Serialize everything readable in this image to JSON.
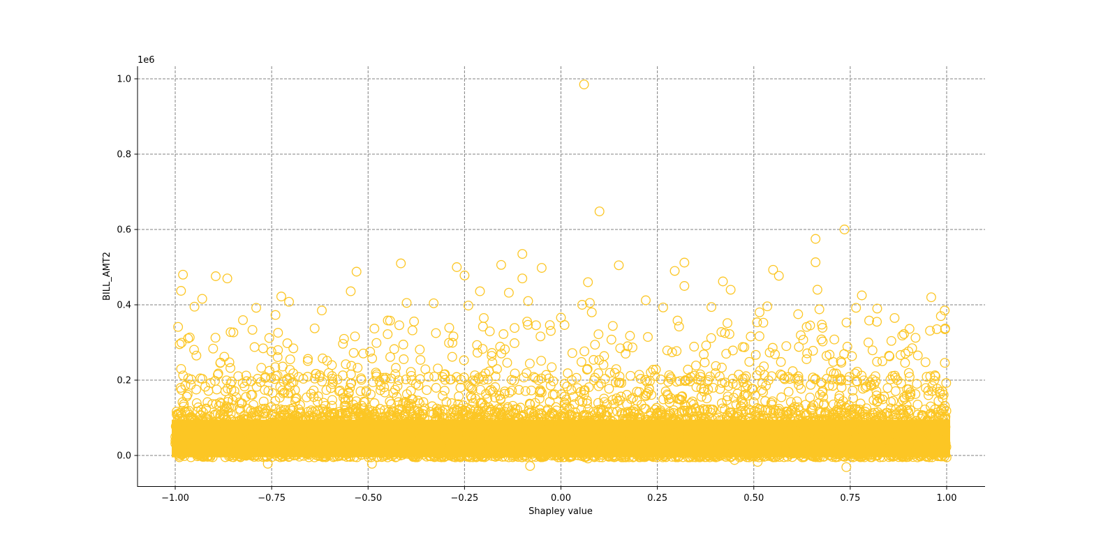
{
  "chart_data": {
    "type": "scatter",
    "title": "",
    "xlabel": "Shapley value",
    "ylabel": "BILL_AMT2",
    "y_offset_label": "1e6",
    "xlim": [
      -1.1,
      1.1
    ],
    "ylim": [
      -0.083,
      1.03
    ],
    "y_scale": 1000000,
    "x_ticks": [
      -1.0,
      -0.75,
      -0.5,
      -0.25,
      0.0,
      0.25,
      0.5,
      0.75,
      1.0
    ],
    "x_tick_labels": [
      "−1.00",
      "−0.75",
      "−0.50",
      "−0.25",
      "0.00",
      "0.25",
      "0.50",
      "0.75",
      "1.00"
    ],
    "y_ticks": [
      0.0,
      0.2,
      0.4,
      0.6,
      0.8,
      1.0
    ],
    "y_tick_labels": [
      "0.0",
      "0.2",
      "0.4",
      "0.6",
      "0.8",
      "1.0"
    ],
    "grid": true,
    "grid_style": "dashed",
    "marker": "open-circle",
    "marker_color": "#FCC624",
    "legend": null,
    "distribution": {
      "x_range": [
        -1.0,
        1.0
      ],
      "dense_band_y_range": [
        0.0,
        0.1
      ],
      "medium_band_y_range": [
        0.1,
        0.2
      ],
      "sparse_y_max": 0.6
    },
    "outliers": [
      {
        "x": 0.06,
        "y": 0.985
      },
      {
        "x": 0.1,
        "y": 0.648
      },
      {
        "x": 0.735,
        "y": 0.6
      },
      {
        "x": 0.66,
        "y": 0.575
      },
      {
        "x": -0.1,
        "y": 0.535
      },
      {
        "x": 0.66,
        "y": 0.513
      },
      {
        "x": 0.32,
        "y": 0.512
      },
      {
        "x": -0.415,
        "y": 0.51
      },
      {
        "x": -0.155,
        "y": 0.506
      },
      {
        "x": 0.15,
        "y": 0.505
      },
      {
        "x": -0.27,
        "y": 0.5
      },
      {
        "x": -0.05,
        "y": 0.498
      },
      {
        "x": 0.55,
        "y": 0.493
      },
      {
        "x": 0.295,
        "y": 0.49
      },
      {
        "x": -0.53,
        "y": 0.488
      },
      {
        "x": -0.98,
        "y": 0.48
      },
      {
        "x": -0.25,
        "y": 0.478
      },
      {
        "x": 0.565,
        "y": 0.477
      },
      {
        "x": -0.895,
        "y": 0.476
      },
      {
        "x": -0.865,
        "y": 0.47
      },
      {
        "x": -0.1,
        "y": 0.47
      },
      {
        "x": 0.07,
        "y": 0.46
      },
      {
        "x": 0.42,
        "y": 0.462
      },
      {
        "x": 0.32,
        "y": 0.45
      },
      {
        "x": 0.44,
        "y": 0.44
      },
      {
        "x": -0.985,
        "y": 0.437
      },
      {
        "x": -0.545,
        "y": 0.436
      },
      {
        "x": 0.665,
        "y": 0.44
      },
      {
        "x": -0.21,
        "y": 0.436
      },
      {
        "x": -0.135,
        "y": 0.432
      },
      {
        "x": 0.78,
        "y": 0.425
      },
      {
        "x": -0.725,
        "y": 0.422
      },
      {
        "x": 0.96,
        "y": 0.42
      },
      {
        "x": -0.93,
        "y": 0.416
      },
      {
        "x": 0.22,
        "y": 0.412
      },
      {
        "x": -0.085,
        "y": 0.41
      },
      {
        "x": -0.705,
        "y": 0.408
      },
      {
        "x": -0.4,
        "y": 0.405
      },
      {
        "x": 0.075,
        "y": 0.405
      },
      {
        "x": -0.33,
        "y": 0.404
      },
      {
        "x": 0.055,
        "y": 0.4
      },
      {
        "x": -0.24,
        "y": 0.398
      },
      {
        "x": 0.535,
        "y": 0.396
      },
      {
        "x": -0.95,
        "y": 0.395
      },
      {
        "x": 0.39,
        "y": 0.394
      },
      {
        "x": 0.265,
        "y": 0.393
      },
      {
        "x": -0.79,
        "y": 0.392
      },
      {
        "x": 0.765,
        "y": 0.392
      },
      {
        "x": 0.82,
        "y": 0.39
      },
      {
        "x": 0.67,
        "y": 0.388
      },
      {
        "x": 0.995,
        "y": 0.385
      },
      {
        "x": -0.62,
        "y": 0.385
      },
      {
        "x": 0.515,
        "y": 0.38
      },
      {
        "x": 0.08,
        "y": 0.38
      },
      {
        "x": 0.615,
        "y": 0.375
      },
      {
        "x": -0.74,
        "y": 0.373
      },
      {
        "x": 0.985,
        "y": 0.37
      },
      {
        "x": 0.865,
        "y": 0.365
      },
      {
        "x": -0.2,
        "y": 0.365
      },
      {
        "x": 0.0,
        "y": 0.366
      }
    ],
    "approx_point_count": 24000
  }
}
